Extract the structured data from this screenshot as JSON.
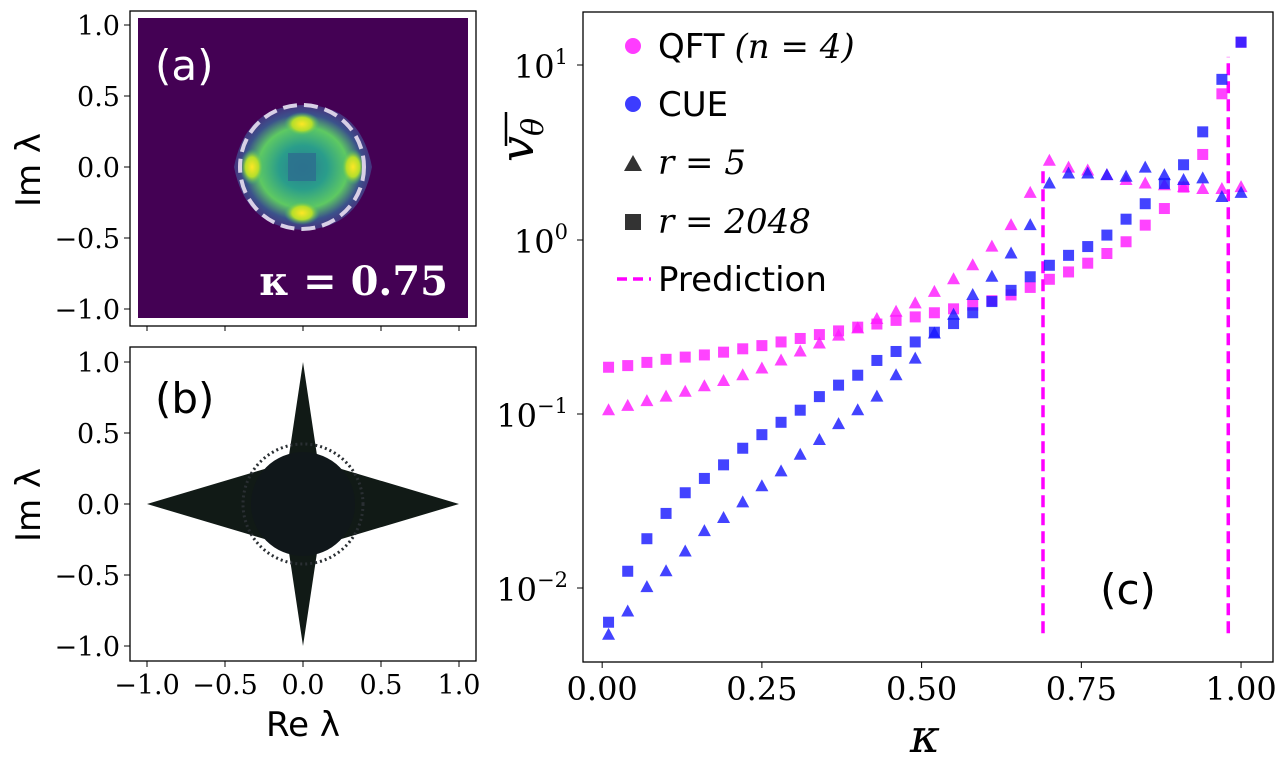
{
  "panel_a": {
    "label": "(a)",
    "annotation": "κ = 0.75",
    "xlim": [
      -1.1,
      1.1
    ],
    "ylim": [
      -1.1,
      1.1
    ],
    "yticks": [
      "1.0",
      "0.5",
      "0.0",
      "−0.5",
      "−1.0"
    ],
    "ylabel": "Im λ"
  },
  "panel_b": {
    "label": "(b)",
    "xlim": [
      -1.1,
      1.1
    ],
    "ylim": [
      -1.1,
      1.1
    ],
    "xticks": [
      "−1.0",
      "−0.5",
      "0.0",
      "0.5",
      "1.0"
    ],
    "yticks": [
      "1.0",
      "0.5",
      "0.0",
      "−0.5",
      "−1.0"
    ],
    "xlabel": "Re λ",
    "ylabel": "Im λ"
  },
  "chart_data": {
    "type": "scatter",
    "panel_label": "(c)",
    "xlabel": "κ",
    "ylabel": "v̄θ",
    "yscale": "log",
    "xlim": [
      -0.03,
      1.05
    ],
    "ylim": [
      0.0034,
      21
    ],
    "xticks": [
      0.0,
      0.25,
      0.5,
      0.75,
      1.0
    ],
    "xtick_labels": [
      "0.00",
      "0.25",
      "0.50",
      "0.75",
      "1.00"
    ],
    "ytick_labels": [
      "10^1",
      "10^0",
      "10^-1",
      "10^-2"
    ],
    "legend": {
      "qft": "QFT",
      "qft_math": "(n = 4)",
      "cue": "CUE",
      "tri": "r = 5",
      "sq": "r = 2048",
      "pred": "Prediction"
    },
    "colors": {
      "qft": "#ff1aff",
      "cue": "#1a1aff",
      "pred": "#ff00ff"
    },
    "kappa": [
      0.01,
      0.04,
      0.07,
      0.1,
      0.13,
      0.16,
      0.19,
      0.22,
      0.25,
      0.28,
      0.31,
      0.34,
      0.37,
      0.4,
      0.43,
      0.46,
      0.49,
      0.52,
      0.55,
      0.58,
      0.61,
      0.64,
      0.67,
      0.7,
      0.73,
      0.76,
      0.79,
      0.82,
      0.85,
      0.88,
      0.91,
      0.94,
      0.97,
      1.0
    ],
    "series": [
      {
        "name": "QFT (n=4), r=2048",
        "marker": "square",
        "color": "qft",
        "values": [
          0.178,
          0.182,
          0.19,
          0.198,
          0.204,
          0.21,
          0.218,
          0.228,
          0.238,
          0.25,
          0.262,
          0.276,
          0.29,
          0.305,
          0.318,
          0.334,
          0.35,
          0.37,
          0.39,
          0.41,
          0.435,
          0.47,
          0.52,
          0.58,
          0.64,
          0.72,
          0.82,
          0.96,
          1.2,
          1.5,
          2.0,
          3.1,
          7.0,
          14.0
        ]
      },
      {
        "name": "QFT (n=4), r=5",
        "marker": "triangle",
        "color": "qft",
        "values": [
          0.1,
          0.106,
          0.113,
          0.12,
          0.128,
          0.138,
          0.148,
          0.16,
          0.175,
          0.195,
          0.22,
          0.245,
          0.272,
          0.3,
          0.34,
          0.375,
          0.42,
          0.49,
          0.58,
          0.7,
          0.9,
          1.2,
          1.85,
          2.85,
          2.6,
          2.5,
          2.35,
          2.2,
          2.1,
          2.05,
          2.0,
          1.95,
          1.95,
          2.0
        ]
      },
      {
        "name": "CUE, r=2048",
        "marker": "square",
        "color": "cue",
        "values": [
          0.0058,
          0.0115,
          0.0178,
          0.025,
          0.033,
          0.04,
          0.048,
          0.06,
          0.072,
          0.085,
          0.1,
          0.12,
          0.14,
          0.16,
          0.195,
          0.22,
          0.25,
          0.285,
          0.32,
          0.37,
          0.43,
          0.5,
          0.6,
          0.7,
          0.8,
          0.9,
          1.05,
          1.3,
          1.6,
          2.1,
          2.7,
          4.2,
          8.5,
          14.0
        ]
      },
      {
        "name": "CUE, r=5",
        "marker": "triangle",
        "color": "cue",
        "values": [
          0.0049,
          0.0067,
          0.0093,
          0.0115,
          0.015,
          0.0197,
          0.0235,
          0.029,
          0.036,
          0.044,
          0.055,
          0.067,
          0.083,
          0.1,
          0.12,
          0.16,
          0.2,
          0.28,
          0.36,
          0.47,
          0.6,
          0.82,
          1.2,
          2.1,
          2.4,
          2.4,
          2.35,
          2.3,
          2.6,
          2.35,
          2.2,
          2.25,
          1.75,
          1.85
        ]
      }
    ],
    "prediction_lines": [
      {
        "x": 0.69,
        "y_from": 0.005,
        "y_to": 2.6
      },
      {
        "x": 0.98,
        "y_from": 0.005,
        "y_to": 11.5
      }
    ]
  }
}
